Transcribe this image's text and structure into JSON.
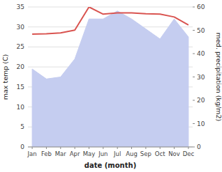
{
  "chart_data": {
    "type": "line",
    "xlabel": "date (month)",
    "ylabel": "max temp (C)",
    "y2label": "med. precipitation (kg/m2)",
    "categories": [
      "Jan",
      "Feb",
      "Mar",
      "Apr",
      "May",
      "Jun",
      "Jul",
      "Aug",
      "Sep",
      "Oct",
      "Nov",
      "Dec"
    ],
    "series": [
      {
        "type": "area",
        "color": "#c5cdf0",
        "values": [
          19.5,
          17.0,
          17.5,
          22.0,
          32.0,
          32.0,
          34.0,
          32.0,
          29.5,
          27.0,
          32.0,
          27.5
        ]
      },
      {
        "type": "line",
        "color": "#d9534f",
        "values": [
          28.2,
          28.3,
          28.5,
          29.2,
          35.0,
          33.2,
          33.5,
          33.5,
          33.3,
          33.2,
          32.5,
          30.5
        ]
      }
    ],
    "ylim": [
      0,
      35
    ],
    "yticks": [
      0,
      5,
      10,
      15,
      20,
      25,
      30,
      35
    ],
    "y2lim": [
      0,
      60
    ],
    "y2ticks": [
      0,
      10,
      20,
      30,
      40,
      50,
      60
    ],
    "grid": true
  }
}
